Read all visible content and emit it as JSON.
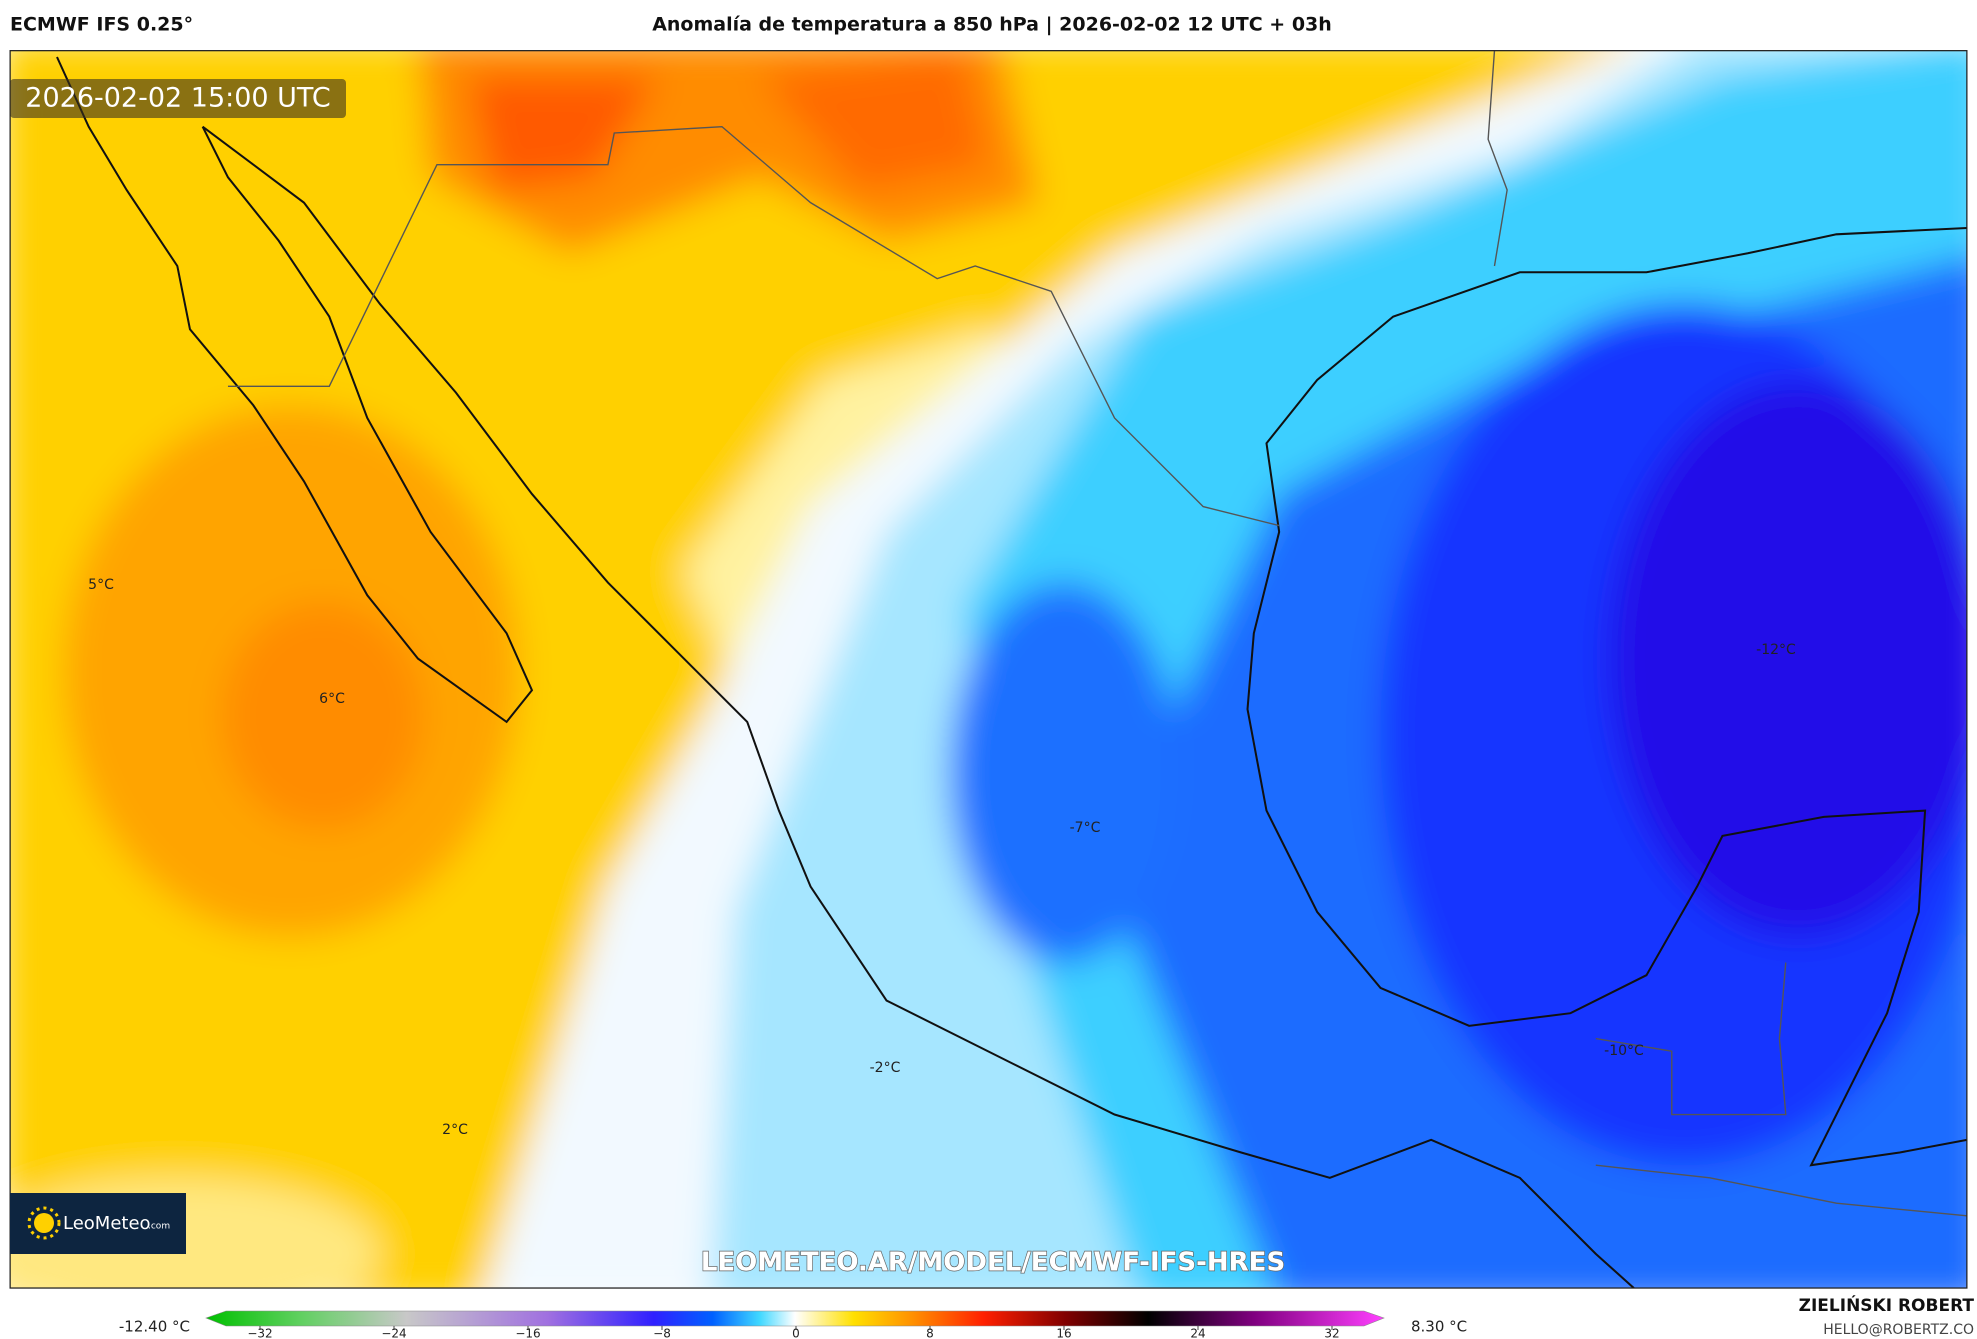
{
  "header": {
    "model": "ECMWF IFS 0.25°",
    "title": "Anomalía de temperatura a 850 hPa | 2026-02-02 12 UTC + 03h"
  },
  "map": {
    "valid_time": "2026-02-02 15:00 UTC",
    "labels": [
      "5°C",
      "6°C",
      "-7°C",
      "-12°C",
      "-10°C",
      "-2°C",
      "2°C"
    ],
    "logo": {
      "name": "LeoMeteo",
      "suffix": ".com"
    },
    "watermark": "LEOMETEO.AR/MODEL/ECMWF-IFS-HRES"
  },
  "colorbar": {
    "min_label": "-12.40 °C",
    "max_label": "8.30 °C",
    "ticks": [
      {
        "value": -32,
        "label": "−32"
      },
      {
        "value": -24,
        "label": "−24"
      },
      {
        "value": -16,
        "label": "−16"
      },
      {
        "value": -8,
        "label": "−8"
      },
      0,
      8,
      16,
      24,
      32
    ]
  },
  "footer": {
    "author": "ZIELIŃSKI ROBERT",
    "email": "HELLO@ROBERTZ.CO"
  }
}
